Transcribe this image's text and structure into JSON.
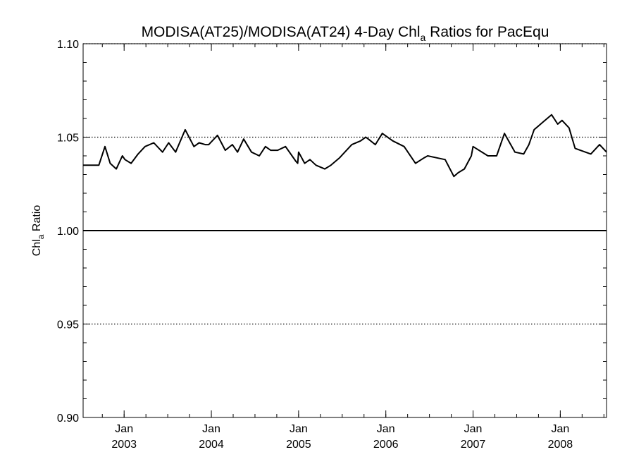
{
  "chart_data": {
    "type": "line",
    "title_main": "MODISA(AT25)/MODISA(AT24) 4-Day Chl",
    "title_sub": "a",
    "title_rest": " Ratios for PacEqu",
    "ylabel_main": "Chl",
    "ylabel_sub": "a",
    "ylabel_rest": " Ratio",
    "xlim": [
      2002.53,
      2008.53
    ],
    "ylim": [
      0.9,
      1.1
    ],
    "y_ticks": [
      {
        "value": 0.9,
        "label": "0.90"
      },
      {
        "value": 0.95,
        "label": "0.95"
      },
      {
        "value": 1.0,
        "label": "1.00"
      },
      {
        "value": 1.05,
        "label": "1.05"
      },
      {
        "value": 1.1,
        "label": "1.10"
      }
    ],
    "x_ticks": [
      {
        "value": 2003.0,
        "month": "Jan",
        "year": "2003"
      },
      {
        "value": 2004.0,
        "month": "Jan",
        "year": "2004"
      },
      {
        "value": 2005.0,
        "month": "Jan",
        "year": "2005"
      },
      {
        "value": 2006.0,
        "month": "Jan",
        "year": "2006"
      },
      {
        "value": 2007.0,
        "month": "Jan",
        "year": "2007"
      },
      {
        "value": 2008.0,
        "month": "Jan",
        "year": "2008"
      }
    ],
    "reference_lines": [
      {
        "value": 1.0,
        "style": "solid"
      },
      {
        "value": 0.95,
        "style": "dotted"
      },
      {
        "value": 1.05,
        "style": "dotted"
      },
      {
        "value": 1.1,
        "style": "dotted"
      }
    ],
    "series": [
      {
        "x": [
          2002.53,
          2002.71,
          2002.78,
          2002.84,
          2002.91,
          2002.98,
          2003.01,
          2003.08,
          2003.16,
          2003.24,
          2003.34,
          2003.44,
          2003.51,
          2003.59,
          2003.7,
          2003.8,
          2003.86,
          2003.93,
          2003.97,
          2004.07,
          2004.16,
          2004.24,
          2004.3,
          2004.37,
          2004.46,
          2004.55,
          2004.62,
          2004.68,
          2004.76,
          2004.85,
          2004.97,
          2004.99,
          2005.0,
          2005.07,
          2005.13,
          2005.2,
          2005.3,
          2005.37,
          2005.47,
          2005.61,
          2005.71,
          2005.77,
          2005.8,
          2005.88,
          2005.96,
          2006.08,
          2006.21,
          2006.34,
          2006.44,
          2006.48,
          2006.58,
          2006.68,
          2006.78,
          2006.83,
          2006.9,
          2006.98,
          2007.0,
          2007.17,
          2007.27,
          2007.36,
          2007.48,
          2007.58,
          2007.64,
          2007.7,
          2007.8,
          2007.9,
          2007.97,
          2008.02,
          2008.1,
          2008.17,
          2008.35,
          2008.45,
          2008.53
        ],
        "y": [
          1.035,
          1.035,
          1.045,
          1.036,
          1.033,
          1.04,
          1.038,
          1.036,
          1.041,
          1.045,
          1.047,
          1.042,
          1.047,
          1.042,
          1.054,
          1.045,
          1.047,
          1.046,
          1.046,
          1.051,
          1.043,
          1.046,
          1.042,
          1.049,
          1.042,
          1.04,
          1.045,
          1.043,
          1.043,
          1.045,
          1.037,
          1.036,
          1.042,
          1.036,
          1.038,
          1.035,
          1.033,
          1.035,
          1.039,
          1.046,
          1.048,
          1.05,
          1.049,
          1.046,
          1.052,
          1.048,
          1.045,
          1.036,
          1.039,
          1.04,
          1.039,
          1.038,
          1.029,
          1.031,
          1.033,
          1.04,
          1.045,
          1.04,
          1.04,
          1.052,
          1.042,
          1.041,
          1.046,
          1.054,
          1.058,
          1.062,
          1.057,
          1.059,
          1.055,
          1.044,
          1.041,
          1.046,
          1.042
        ]
      }
    ],
    "grid": false,
    "legend": false
  }
}
